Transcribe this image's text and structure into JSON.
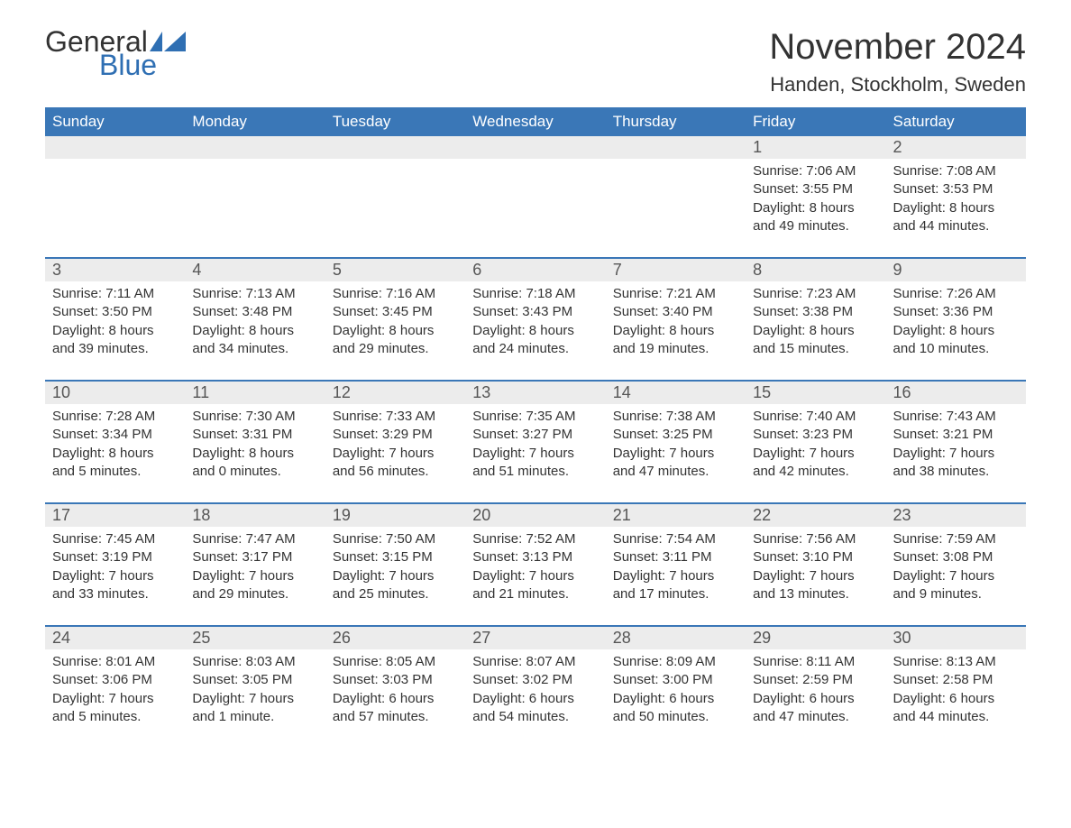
{
  "logo": {
    "general": "General",
    "blue": "Blue",
    "flag_color": "#2f6fb3"
  },
  "title": "November 2024",
  "location": "Handen, Stockholm, Sweden",
  "colors": {
    "header_bg": "#3a77b7",
    "header_text": "#ffffff",
    "daynum_bg": "#ececec",
    "daynum_text": "#555555",
    "body_text": "#333333",
    "separator": "#3a77b7",
    "page_bg": "#ffffff"
  },
  "fonts": {
    "title_size_pt": 30,
    "location_size_pt": 16,
    "header_size_pt": 13,
    "daynum_size_pt": 14,
    "body_size_pt": 11
  },
  "day_headers": [
    "Sunday",
    "Monday",
    "Tuesday",
    "Wednesday",
    "Thursday",
    "Friday",
    "Saturday"
  ],
  "weeks": [
    [
      null,
      null,
      null,
      null,
      null,
      {
        "n": "1",
        "sunrise": "Sunrise: 7:06 AM",
        "sunset": "Sunset: 3:55 PM",
        "day1": "Daylight: 8 hours",
        "day2": "and 49 minutes."
      },
      {
        "n": "2",
        "sunrise": "Sunrise: 7:08 AM",
        "sunset": "Sunset: 3:53 PM",
        "day1": "Daylight: 8 hours",
        "day2": "and 44 minutes."
      }
    ],
    [
      {
        "n": "3",
        "sunrise": "Sunrise: 7:11 AM",
        "sunset": "Sunset: 3:50 PM",
        "day1": "Daylight: 8 hours",
        "day2": "and 39 minutes."
      },
      {
        "n": "4",
        "sunrise": "Sunrise: 7:13 AM",
        "sunset": "Sunset: 3:48 PM",
        "day1": "Daylight: 8 hours",
        "day2": "and 34 minutes."
      },
      {
        "n": "5",
        "sunrise": "Sunrise: 7:16 AM",
        "sunset": "Sunset: 3:45 PM",
        "day1": "Daylight: 8 hours",
        "day2": "and 29 minutes."
      },
      {
        "n": "6",
        "sunrise": "Sunrise: 7:18 AM",
        "sunset": "Sunset: 3:43 PM",
        "day1": "Daylight: 8 hours",
        "day2": "and 24 minutes."
      },
      {
        "n": "7",
        "sunrise": "Sunrise: 7:21 AM",
        "sunset": "Sunset: 3:40 PM",
        "day1": "Daylight: 8 hours",
        "day2": "and 19 minutes."
      },
      {
        "n": "8",
        "sunrise": "Sunrise: 7:23 AM",
        "sunset": "Sunset: 3:38 PM",
        "day1": "Daylight: 8 hours",
        "day2": "and 15 minutes."
      },
      {
        "n": "9",
        "sunrise": "Sunrise: 7:26 AM",
        "sunset": "Sunset: 3:36 PM",
        "day1": "Daylight: 8 hours",
        "day2": "and 10 minutes."
      }
    ],
    [
      {
        "n": "10",
        "sunrise": "Sunrise: 7:28 AM",
        "sunset": "Sunset: 3:34 PM",
        "day1": "Daylight: 8 hours",
        "day2": "and 5 minutes."
      },
      {
        "n": "11",
        "sunrise": "Sunrise: 7:30 AM",
        "sunset": "Sunset: 3:31 PM",
        "day1": "Daylight: 8 hours",
        "day2": "and 0 minutes."
      },
      {
        "n": "12",
        "sunrise": "Sunrise: 7:33 AM",
        "sunset": "Sunset: 3:29 PM",
        "day1": "Daylight: 7 hours",
        "day2": "and 56 minutes."
      },
      {
        "n": "13",
        "sunrise": "Sunrise: 7:35 AM",
        "sunset": "Sunset: 3:27 PM",
        "day1": "Daylight: 7 hours",
        "day2": "and 51 minutes."
      },
      {
        "n": "14",
        "sunrise": "Sunrise: 7:38 AM",
        "sunset": "Sunset: 3:25 PM",
        "day1": "Daylight: 7 hours",
        "day2": "and 47 minutes."
      },
      {
        "n": "15",
        "sunrise": "Sunrise: 7:40 AM",
        "sunset": "Sunset: 3:23 PM",
        "day1": "Daylight: 7 hours",
        "day2": "and 42 minutes."
      },
      {
        "n": "16",
        "sunrise": "Sunrise: 7:43 AM",
        "sunset": "Sunset: 3:21 PM",
        "day1": "Daylight: 7 hours",
        "day2": "and 38 minutes."
      }
    ],
    [
      {
        "n": "17",
        "sunrise": "Sunrise: 7:45 AM",
        "sunset": "Sunset: 3:19 PM",
        "day1": "Daylight: 7 hours",
        "day2": "and 33 minutes."
      },
      {
        "n": "18",
        "sunrise": "Sunrise: 7:47 AM",
        "sunset": "Sunset: 3:17 PM",
        "day1": "Daylight: 7 hours",
        "day2": "and 29 minutes."
      },
      {
        "n": "19",
        "sunrise": "Sunrise: 7:50 AM",
        "sunset": "Sunset: 3:15 PM",
        "day1": "Daylight: 7 hours",
        "day2": "and 25 minutes."
      },
      {
        "n": "20",
        "sunrise": "Sunrise: 7:52 AM",
        "sunset": "Sunset: 3:13 PM",
        "day1": "Daylight: 7 hours",
        "day2": "and 21 minutes."
      },
      {
        "n": "21",
        "sunrise": "Sunrise: 7:54 AM",
        "sunset": "Sunset: 3:11 PM",
        "day1": "Daylight: 7 hours",
        "day2": "and 17 minutes."
      },
      {
        "n": "22",
        "sunrise": "Sunrise: 7:56 AM",
        "sunset": "Sunset: 3:10 PM",
        "day1": "Daylight: 7 hours",
        "day2": "and 13 minutes."
      },
      {
        "n": "23",
        "sunrise": "Sunrise: 7:59 AM",
        "sunset": "Sunset: 3:08 PM",
        "day1": "Daylight: 7 hours",
        "day2": "and 9 minutes."
      }
    ],
    [
      {
        "n": "24",
        "sunrise": "Sunrise: 8:01 AM",
        "sunset": "Sunset: 3:06 PM",
        "day1": "Daylight: 7 hours",
        "day2": "and 5 minutes."
      },
      {
        "n": "25",
        "sunrise": "Sunrise: 8:03 AM",
        "sunset": "Sunset: 3:05 PM",
        "day1": "Daylight: 7 hours",
        "day2": "and 1 minute."
      },
      {
        "n": "26",
        "sunrise": "Sunrise: 8:05 AM",
        "sunset": "Sunset: 3:03 PM",
        "day1": "Daylight: 6 hours",
        "day2": "and 57 minutes."
      },
      {
        "n": "27",
        "sunrise": "Sunrise: 8:07 AM",
        "sunset": "Sunset: 3:02 PM",
        "day1": "Daylight: 6 hours",
        "day2": "and 54 minutes."
      },
      {
        "n": "28",
        "sunrise": "Sunrise: 8:09 AM",
        "sunset": "Sunset: 3:00 PM",
        "day1": "Daylight: 6 hours",
        "day2": "and 50 minutes."
      },
      {
        "n": "29",
        "sunrise": "Sunrise: 8:11 AM",
        "sunset": "Sunset: 2:59 PM",
        "day1": "Daylight: 6 hours",
        "day2": "and 47 minutes."
      },
      {
        "n": "30",
        "sunrise": "Sunrise: 8:13 AM",
        "sunset": "Sunset: 2:58 PM",
        "day1": "Daylight: 6 hours",
        "day2": "and 44 minutes."
      }
    ]
  ]
}
